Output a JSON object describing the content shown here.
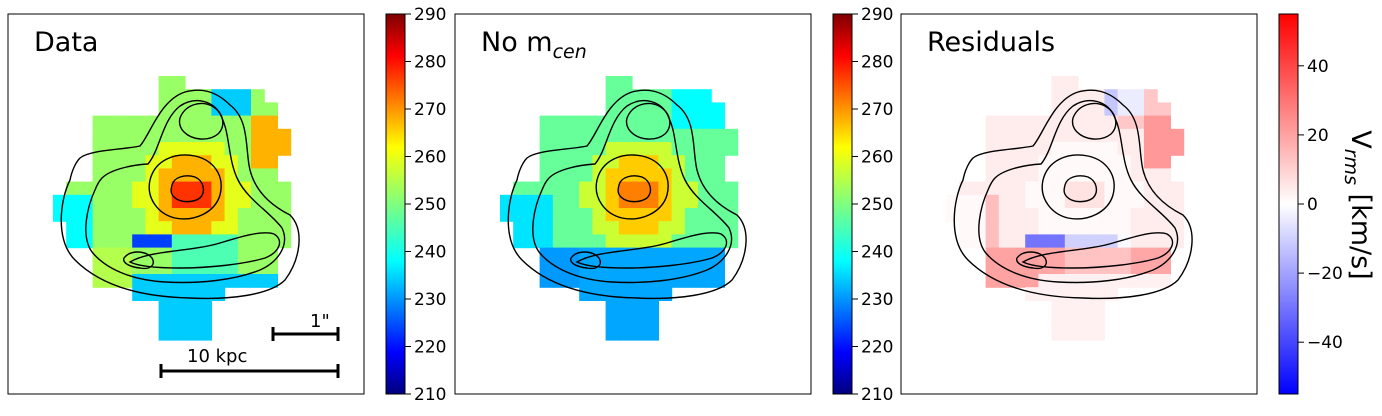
{
  "chart_data": [
    {
      "type": "heatmap",
      "title": "Data",
      "colormap": "jet",
      "clim": [
        210,
        290
      ],
      "colorbar_ticks": [
        "210",
        "220",
        "230",
        "240",
        "250",
        "260",
        "270",
        "280",
        "290"
      ],
      "scale_bars": [
        {
          "label": "1\""
        },
        {
          "label": "10 kpc"
        }
      ],
      "approx_cell_values": {
        "peak": 275,
        "center_ring": 265,
        "outskirts": 250,
        "low_pixel": 225,
        "bottom_lobe": 238
      }
    },
    {
      "type": "heatmap",
      "title": "No m",
      "title_sub": "cen",
      "colormap": "jet",
      "clim": [
        210,
        290
      ],
      "colorbar_ticks": [
        "210",
        "220",
        "230",
        "240",
        "250",
        "260",
        "270",
        "280",
        "290"
      ],
      "approx_cell_values": {
        "peak": 270,
        "center_ring": 262,
        "outskirts": 248,
        "bottom_lobe": 232
      }
    },
    {
      "type": "heatmap",
      "title": "Residuals",
      "colormap": "bwr",
      "clim": [
        -55,
        55
      ],
      "colorbar_ticks": [
        "40",
        "20",
        "0",
        "−20",
        "−40"
      ],
      "colorbar_tick_values": [
        40,
        20,
        0,
        -20,
        -40
      ],
      "colorbar_label": "V",
      "colorbar_label_sub": "rms",
      "colorbar_label_unit": " [km/s]",
      "approx_cell_values": {
        "top_right_patch": 20,
        "bottom_left_patch": 20,
        "negative_pixel": -30,
        "background": 0
      }
    }
  ]
}
